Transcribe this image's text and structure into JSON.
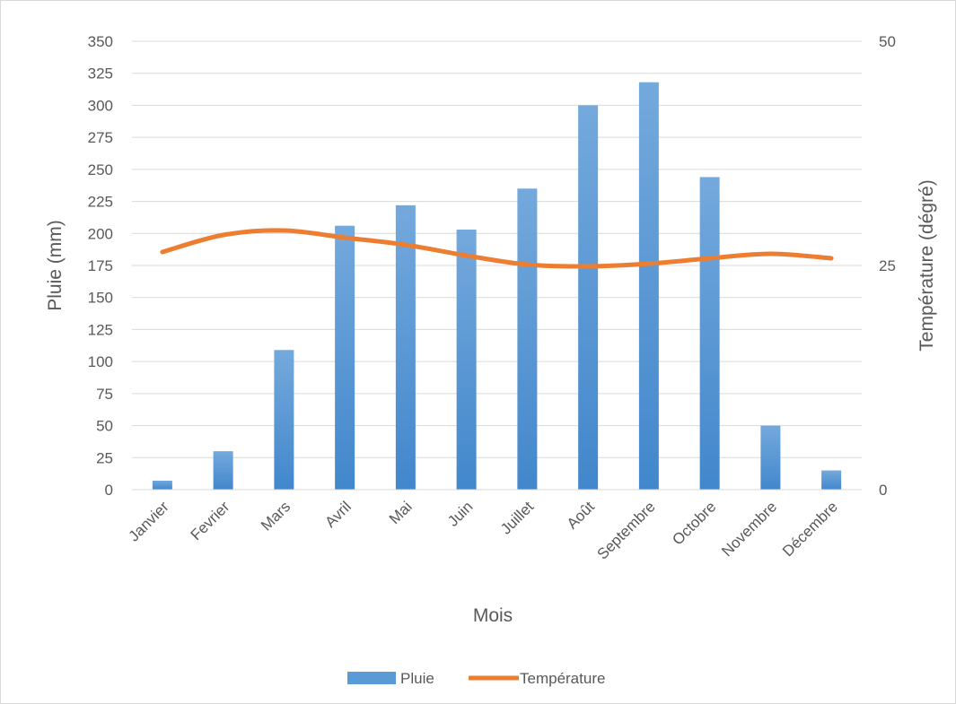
{
  "chart_data": {
    "type": "bar",
    "categories": [
      "Janvier",
      "Fevrier",
      "Mars",
      "Avril",
      "Mai",
      "Juin",
      "Juillet",
      "Août",
      "Septembre",
      "Octobre",
      "Novembre",
      "Décembre"
    ],
    "series": [
      {
        "name": "Pluie",
        "type": "bar",
        "axis": "left",
        "color": "#5b9bd5",
        "values": [
          7,
          30,
          109,
          206,
          222,
          203,
          235,
          300,
          318,
          244,
          50,
          15
        ]
      },
      {
        "name": "Température",
        "type": "line",
        "axis": "right",
        "color": "#ed7d31",
        "values": [
          26.5,
          28.4,
          28.9,
          28.1,
          27.3,
          26.1,
          25.1,
          24.9,
          25.2,
          25.8,
          26.3,
          25.8
        ]
      }
    ],
    "title": "",
    "xlabel": "Mois",
    "ylabel": "Pluie (mm)",
    "y2label": "Température (dégré)",
    "ylim": [
      0,
      350
    ],
    "y2lim": [
      0,
      50
    ],
    "yticks": [
      0,
      25,
      50,
      75,
      100,
      125,
      150,
      175,
      200,
      225,
      250,
      275,
      300,
      325,
      350
    ],
    "y2ticks": [
      0,
      25,
      50
    ],
    "grid": true,
    "legend": "bottom"
  }
}
